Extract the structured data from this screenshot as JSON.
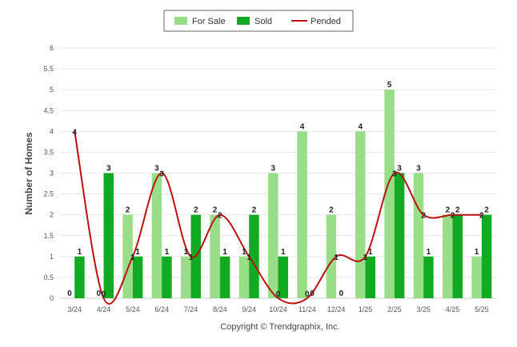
{
  "chart_data": {
    "type": "bar",
    "categories": [
      "3/24",
      "4/24",
      "5/24",
      "6/24",
      "7/24",
      "8/24",
      "9/24",
      "10/24",
      "11/24",
      "12/24",
      "1/25",
      "2/25",
      "3/25",
      "4/25",
      "5/25"
    ],
    "series": [
      {
        "name": "For Sale",
        "type": "bar",
        "color": "#99dd88",
        "values": [
          0,
          0,
          2,
          3,
          1,
          2,
          1,
          3,
          4,
          2,
          4,
          5,
          3,
          2,
          1
        ]
      },
      {
        "name": "Sold",
        "type": "bar",
        "color": "#11aa22",
        "values": [
          1,
          3,
          1,
          1,
          2,
          1,
          2,
          1,
          0,
          0,
          1,
          3,
          1,
          2,
          2
        ]
      },
      {
        "name": "Pended",
        "type": "line",
        "color": "#bb1111",
        "values": [
          4,
          0,
          1,
          3,
          1,
          2,
          1,
          0,
          0,
          1,
          1,
          3,
          2,
          2,
          2
        ]
      }
    ],
    "ylabel": "Number of Homes",
    "ylim": [
      0,
      6
    ],
    "yticks": [
      "0",
      "0.5",
      "1",
      "1.5",
      "2",
      "2.5",
      "3",
      "3.5",
      "4",
      "4.5",
      "5",
      "5.5",
      "6"
    ],
    "grid": true,
    "legend_position": "top-center",
    "copyright": "Copyright © Trendgraphix, Inc."
  }
}
